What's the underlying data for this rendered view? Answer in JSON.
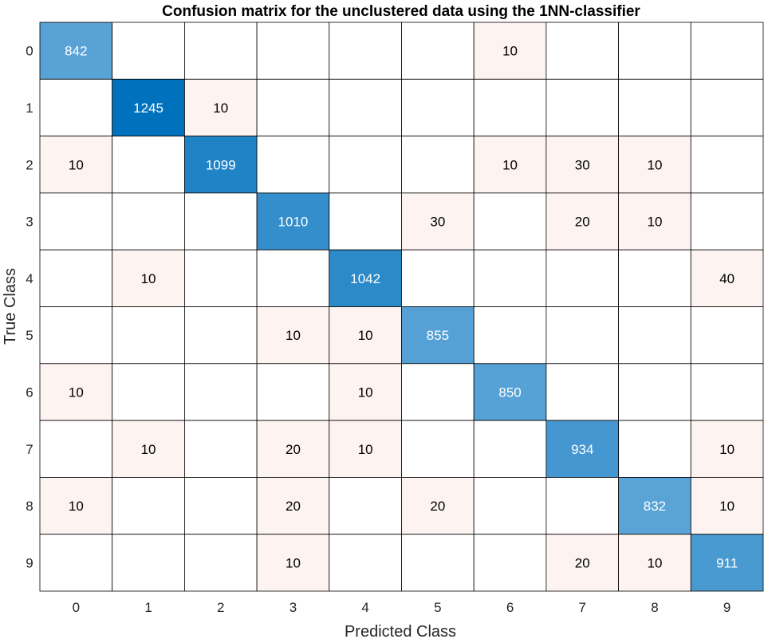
{
  "chart_data": {
    "type": "heatmap",
    "title": "Confusion matrix for the unclustered data using the 1NN-classifier",
    "xlabel": "Predicted Class",
    "ylabel": "True Class",
    "classes": [
      "0",
      "1",
      "2",
      "3",
      "4",
      "5",
      "6",
      "7",
      "8",
      "9"
    ],
    "matrix": [
      [
        842,
        0,
        0,
        0,
        0,
        0,
        10,
        0,
        0,
        0
      ],
      [
        0,
        1245,
        10,
        0,
        0,
        0,
        0,
        0,
        0,
        0
      ],
      [
        10,
        0,
        1099,
        0,
        0,
        0,
        10,
        30,
        10,
        0
      ],
      [
        0,
        0,
        0,
        1010,
        0,
        30,
        0,
        20,
        10,
        0
      ],
      [
        0,
        10,
        0,
        0,
        1042,
        0,
        0,
        0,
        0,
        40
      ],
      [
        0,
        0,
        0,
        10,
        10,
        855,
        0,
        0,
        0,
        0
      ],
      [
        10,
        0,
        0,
        0,
        10,
        0,
        850,
        0,
        0,
        0
      ],
      [
        0,
        10,
        0,
        20,
        10,
        0,
        0,
        934,
        0,
        10
      ],
      [
        10,
        0,
        0,
        20,
        0,
        20,
        0,
        0,
        832,
        10
      ],
      [
        0,
        0,
        0,
        10,
        0,
        0,
        0,
        20,
        10,
        911
      ]
    ],
    "colors": {
      "diagonal_max": "#0072bd",
      "diagonal_min": "#5aa3d6",
      "off_diagonal": "#fdf3f0",
      "empty": "#ffffff",
      "grid": "#000000"
    }
  }
}
